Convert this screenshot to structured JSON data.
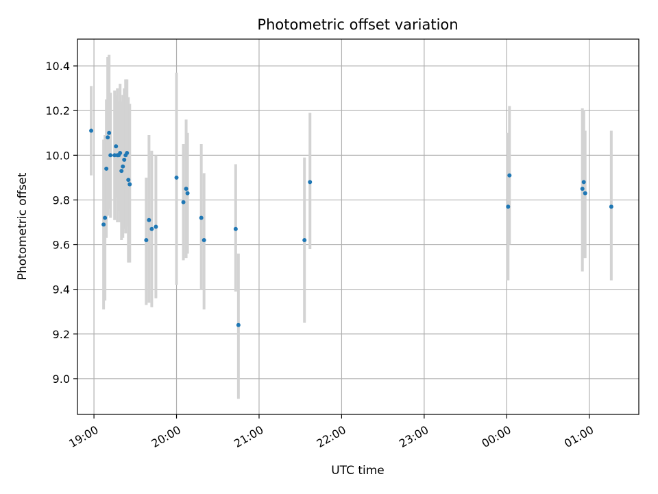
{
  "chart_data": {
    "type": "scatter",
    "title": "Photometric offset variation",
    "xlabel": "UTC time",
    "ylabel": "Photometric offset",
    "x_axis": "time",
    "xlim": [
      "18:48",
      "01:36"
    ],
    "ylim": [
      8.84,
      10.52
    ],
    "grid": true,
    "x_ticks": [
      {
        "t": "19:00",
        "label": "19:00"
      },
      {
        "t": "20:00",
        "label": "20:00"
      },
      {
        "t": "21:00",
        "label": "21:00"
      },
      {
        "t": "22:00",
        "label": "22:00"
      },
      {
        "t": "23:00",
        "label": "23:00"
      },
      {
        "t": "00:00",
        "label": "00:00"
      },
      {
        "t": "01:00",
        "label": "01:00"
      }
    ],
    "y_ticks": [
      {
        "v": 9.0,
        "label": "9.0"
      },
      {
        "v": 9.2,
        "label": "9.2"
      },
      {
        "v": 9.4,
        "label": "9.4"
      },
      {
        "v": 9.6,
        "label": "9.6"
      },
      {
        "v": 9.8,
        "label": "9.8"
      },
      {
        "v": 10.0,
        "label": "10.0"
      },
      {
        "v": 10.2,
        "label": "10.2"
      },
      {
        "v": 10.4,
        "label": "10.4"
      }
    ],
    "colors": {
      "marker": "#1f77b4",
      "errorbar": "#d3d3d3",
      "grid": "#b0b0b0"
    },
    "points": [
      {
        "t": "18:58",
        "y": 10.11,
        "lo": 9.91,
        "hi": 10.31
      },
      {
        "t": "19:07",
        "y": 9.69,
        "lo": 9.31,
        "hi": 10.07
      },
      {
        "t": "19:08",
        "y": 9.72,
        "lo": 9.35,
        "hi": 10.09
      },
      {
        "t": "19:09",
        "y": 9.94,
        "lo": 9.63,
        "hi": 10.25
      },
      {
        "t": "19:10",
        "y": 10.08,
        "lo": 9.73,
        "hi": 10.44
      },
      {
        "t": "19:11",
        "y": 10.1,
        "lo": 9.76,
        "hi": 10.45
      },
      {
        "t": "19:12",
        "y": 10.0,
        "lo": 9.72,
        "hi": 10.28
      },
      {
        "t": "19:15",
        "y": 10.0,
        "lo": 9.71,
        "hi": 10.29
      },
      {
        "t": "19:16",
        "y": 10.04,
        "lo": 9.81,
        "hi": 10.27
      },
      {
        "t": "19:17",
        "y": 10.0,
        "lo": 9.7,
        "hi": 10.3
      },
      {
        "t": "19:18",
        "y": 10.0,
        "lo": 9.75,
        "hi": 10.24
      },
      {
        "t": "19:19",
        "y": 10.01,
        "lo": 9.7,
        "hi": 10.32
      },
      {
        "t": "19:20",
        "y": 9.93,
        "lo": 9.62,
        "hi": 10.24
      },
      {
        "t": "19:21",
        "y": 9.95,
        "lo": 9.63,
        "hi": 10.27
      },
      {
        "t": "19:22",
        "y": 9.98,
        "lo": 9.67,
        "hi": 10.3
      },
      {
        "t": "19:23",
        "y": 10.0,
        "lo": 9.65,
        "hi": 10.34
      },
      {
        "t": "19:24",
        "y": 10.01,
        "lo": 9.68,
        "hi": 10.34
      },
      {
        "t": "19:25",
        "y": 9.89,
        "lo": 9.52,
        "hi": 10.26
      },
      {
        "t": "19:26",
        "y": 9.87,
        "lo": 9.52,
        "hi": 10.23
      },
      {
        "t": "19:38",
        "y": 9.62,
        "lo": 9.33,
        "hi": 9.9
      },
      {
        "t": "19:40",
        "y": 9.71,
        "lo": 9.34,
        "hi": 10.09
      },
      {
        "t": "19:42",
        "y": 9.67,
        "lo": 9.32,
        "hi": 10.02
      },
      {
        "t": "19:45",
        "y": 9.68,
        "lo": 9.36,
        "hi": 10.0
      },
      {
        "t": "20:00",
        "y": 9.9,
        "lo": 9.42,
        "hi": 10.37
      },
      {
        "t": "20:05",
        "y": 9.79,
        "lo": 9.53,
        "hi": 10.05
      },
      {
        "t": "20:07",
        "y": 9.85,
        "lo": 9.54,
        "hi": 10.16
      },
      {
        "t": "20:08",
        "y": 9.83,
        "lo": 9.56,
        "hi": 10.1
      },
      {
        "t": "20:18",
        "y": 9.72,
        "lo": 9.4,
        "hi": 10.05
      },
      {
        "t": "20:20",
        "y": 9.62,
        "lo": 9.31,
        "hi": 9.92
      },
      {
        "t": "20:43",
        "y": 9.67,
        "lo": 9.39,
        "hi": 9.96
      },
      {
        "t": "20:45",
        "y": 9.24,
        "lo": 8.91,
        "hi": 9.56
      },
      {
        "t": "21:33",
        "y": 9.62,
        "lo": 9.25,
        "hi": 9.99
      },
      {
        "t": "21:37",
        "y": 9.88,
        "lo": 9.58,
        "hi": 10.19
      },
      {
        "t": "00:01",
        "y": 9.77,
        "lo": 9.44,
        "hi": 10.1
      },
      {
        "t": "00:02",
        "y": 9.91,
        "lo": 9.6,
        "hi": 10.22
      },
      {
        "t": "00:55",
        "y": 9.85,
        "lo": 9.48,
        "hi": 10.21
      },
      {
        "t": "00:56",
        "y": 9.88,
        "lo": 9.54,
        "hi": 10.2
      },
      {
        "t": "00:57",
        "y": 9.83,
        "lo": 9.54,
        "hi": 10.11
      },
      {
        "t": "01:16",
        "y": 9.77,
        "lo": 9.44,
        "hi": 10.11
      }
    ]
  }
}
